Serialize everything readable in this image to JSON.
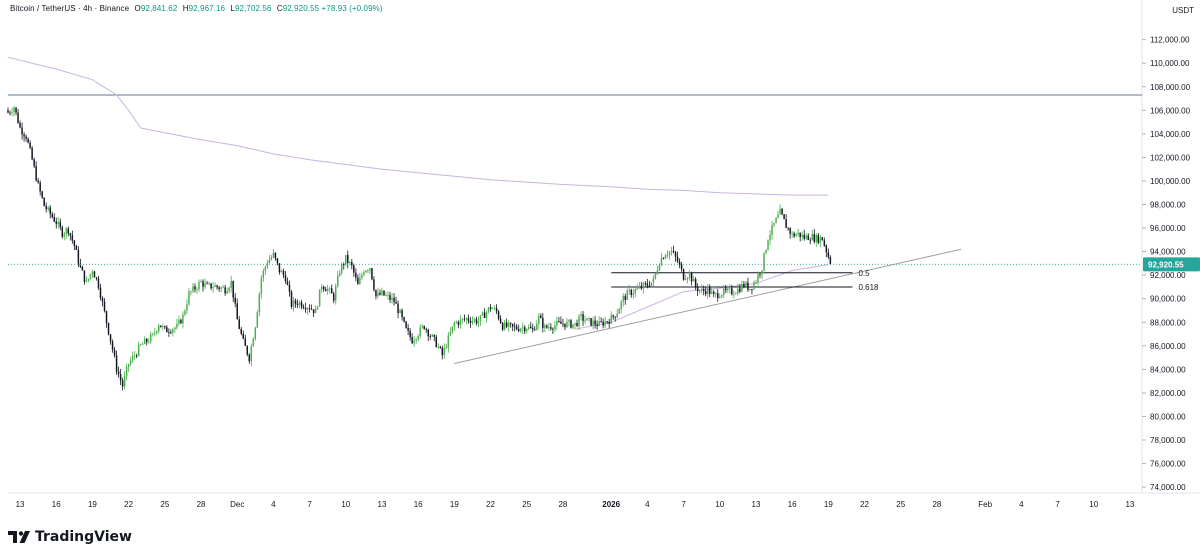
{
  "header": {
    "symbol": "Bitcoin / TetherUS · 4h · Binance",
    "o_label": "O",
    "o": "92,841.62",
    "h_label": "H",
    "h": "92,967.16",
    "l_label": "L",
    "l": "92,702.56",
    "c_label": "C",
    "c": "92,920.55",
    "change": "+78.93 (+0.09%)"
  },
  "currency": "USDT",
  "brand": {
    "name": "TradingView"
  },
  "colors": {
    "up": "#4caf50",
    "down": "#131722",
    "ma": "#c9b3e0",
    "last_price_bg": "#26a69a",
    "resistance": "#5b7a8c",
    "trendline": "#9e9e9e"
  },
  "chart_data": {
    "type": "candlestick",
    "interval": "4h",
    "y_axis": {
      "min": 73500,
      "max": 113500,
      "ticks": [
        74000,
        76000,
        78000,
        80000,
        82000,
        84000,
        86000,
        88000,
        90000,
        92000,
        94000,
        96000,
        98000,
        100000,
        102000,
        104000,
        106000,
        108000,
        110000,
        112000
      ],
      "tick_labels": [
        "74,000.00",
        "76,000.00",
        "78,000.00",
        "80,000.00",
        "82,000.00",
        "84,000.00",
        "86,000.00",
        "88,000.00",
        "90,000.00",
        "92,000.00",
        "94,000.00",
        "96,000.00",
        "98,000.00",
        "100,000.00",
        "102,000.00",
        "104,000.00",
        "106,000.00",
        "108,000.00",
        "110,000.00",
        "112,000.00"
      ],
      "last_price_label": "92,920.55",
      "last_price": 92920.55
    },
    "x_axis": {
      "start": "2025-11-12",
      "end": "2026-02-14",
      "ticks": [
        {
          "date": "2025-11-13",
          "label": "13"
        },
        {
          "date": "2025-11-16",
          "label": "16"
        },
        {
          "date": "2025-11-19",
          "label": "19"
        },
        {
          "date": "2025-11-22",
          "label": "22"
        },
        {
          "date": "2025-11-25",
          "label": "25"
        },
        {
          "date": "2025-11-28",
          "label": "28"
        },
        {
          "date": "2025-12-01",
          "label": "Dec"
        },
        {
          "date": "2025-12-04",
          "label": "4"
        },
        {
          "date": "2025-12-07",
          "label": "7"
        },
        {
          "date": "2025-12-10",
          "label": "10"
        },
        {
          "date": "2025-12-13",
          "label": "13"
        },
        {
          "date": "2025-12-16",
          "label": "16"
        },
        {
          "date": "2025-12-19",
          "label": "19"
        },
        {
          "date": "2025-12-22",
          "label": "22"
        },
        {
          "date": "2025-12-25",
          "label": "25"
        },
        {
          "date": "2025-12-28",
          "label": "28"
        },
        {
          "date": "2026-01-01",
          "label": "2026"
        },
        {
          "date": "2026-01-04",
          "label": "4"
        },
        {
          "date": "2026-01-07",
          "label": "7"
        },
        {
          "date": "2026-01-10",
          "label": "10"
        },
        {
          "date": "2026-01-13",
          "label": "13"
        },
        {
          "date": "2026-01-16",
          "label": "16"
        },
        {
          "date": "2026-01-19",
          "label": "19"
        },
        {
          "date": "2026-01-22",
          "label": "22"
        },
        {
          "date": "2026-01-25",
          "label": "25"
        },
        {
          "date": "2026-01-28",
          "label": "28"
        },
        {
          "date": "2026-02-01",
          "label": "Feb"
        },
        {
          "date": "2026-02-04",
          "label": "4"
        },
        {
          "date": "2026-02-07",
          "label": "7"
        },
        {
          "date": "2026-02-10",
          "label": "10"
        },
        {
          "date": "2026-02-13",
          "label": "13"
        }
      ]
    },
    "price_path": [
      [
        "2025-11-12",
        105800
      ],
      [
        "2025-11-12T12",
        106300
      ],
      [
        "2025-11-13",
        104500
      ],
      [
        "2025-11-13T12",
        103800
      ],
      [
        "2025-11-14",
        101800
      ],
      [
        "2025-11-14T12",
        99600
      ],
      [
        "2025-11-15",
        97900
      ],
      [
        "2025-11-16",
        96500
      ],
      [
        "2025-11-16T12",
        95600
      ],
      [
        "2025-11-17",
        95900
      ],
      [
        "2025-11-17T12",
        94500
      ],
      [
        "2025-11-18",
        92600
      ],
      [
        "2025-11-18T12",
        91300
      ],
      [
        "2025-11-19",
        92500
      ],
      [
        "2025-11-19T12",
        91200
      ],
      [
        "2025-11-20",
        88800
      ],
      [
        "2025-11-20T12",
        86500
      ],
      [
        "2025-11-21",
        84100
      ],
      [
        "2025-11-21T12",
        82600
      ],
      [
        "2025-11-22",
        84500
      ],
      [
        "2025-11-22T12",
        85200
      ],
      [
        "2025-11-23",
        86000
      ],
      [
        "2025-11-24",
        86800
      ],
      [
        "2025-11-24T12",
        87900
      ],
      [
        "2025-11-25",
        87300
      ],
      [
        "2025-11-26",
        87600
      ],
      [
        "2025-11-26T12",
        88500
      ],
      [
        "2025-11-27",
        90400
      ],
      [
        "2025-11-28",
        91400
      ],
      [
        "2025-11-28T12",
        91000
      ],
      [
        "2025-11-29",
        91100
      ],
      [
        "2025-11-30",
        90800
      ],
      [
        "2025-11-30T12",
        91400
      ],
      [
        "2025-12-01",
        88200
      ],
      [
        "2025-12-01T12",
        86300
      ],
      [
        "2025-12-02",
        85000
      ],
      [
        "2025-12-02T12",
        87800
      ],
      [
        "2025-12-03",
        91800
      ],
      [
        "2025-12-03T12",
        93200
      ],
      [
        "2025-12-04",
        93700
      ],
      [
        "2025-12-04T12",
        92400
      ],
      [
        "2025-12-05",
        91800
      ],
      [
        "2025-12-05T12",
        89500
      ],
      [
        "2025-12-06",
        89700
      ],
      [
        "2025-12-07",
        89300
      ],
      [
        "2025-12-07T12",
        88900
      ],
      [
        "2025-12-08",
        91200
      ],
      [
        "2025-12-08T12",
        90800
      ],
      [
        "2025-12-09",
        90100
      ],
      [
        "2025-12-09T12",
        92400
      ],
      [
        "2025-12-10",
        93400
      ],
      [
        "2025-12-10T12",
        92700
      ],
      [
        "2025-12-11",
        91100
      ],
      [
        "2025-12-11T12",
        92500
      ],
      [
        "2025-12-12",
        92700
      ],
      [
        "2025-12-12T12",
        90200
      ],
      [
        "2025-12-13",
        90400
      ],
      [
        "2025-12-14",
        89800
      ],
      [
        "2025-12-14T12",
        88700
      ],
      [
        "2025-12-15",
        87300
      ],
      [
        "2025-12-15T12",
        86500
      ],
      [
        "2025-12-16",
        87100
      ],
      [
        "2025-12-16T12",
        87700
      ],
      [
        "2025-12-17",
        86900
      ],
      [
        "2025-12-17T12",
        86200
      ],
      [
        "2025-12-18",
        85200
      ],
      [
        "2025-12-18T12",
        86600
      ],
      [
        "2025-12-19",
        87900
      ],
      [
        "2025-12-20",
        88300
      ],
      [
        "2025-12-21",
        88100
      ],
      [
        "2025-12-21T12",
        88700
      ],
      [
        "2025-12-22",
        89300
      ],
      [
        "2025-12-22T12",
        88900
      ],
      [
        "2025-12-23",
        87700
      ],
      [
        "2025-12-24",
        87500
      ],
      [
        "2025-12-25",
        87600
      ],
      [
        "2025-12-25T12",
        87300
      ],
      [
        "2025-12-26",
        88400
      ],
      [
        "2025-12-26T12",
        87500
      ],
      [
        "2025-12-27",
        87700
      ],
      [
        "2025-12-28",
        87900
      ],
      [
        "2025-12-29",
        87800
      ],
      [
        "2025-12-29T12",
        88400
      ],
      [
        "2025-12-30",
        88100
      ],
      [
        "2025-12-31",
        87800
      ],
      [
        "2026-01-01",
        88300
      ],
      [
        "2026-01-01T12",
        88900
      ],
      [
        "2026-01-02",
        90000
      ],
      [
        "2026-01-02T12",
        90500
      ],
      [
        "2026-01-03",
        90700
      ],
      [
        "2026-01-04",
        91200
      ],
      [
        "2026-01-04T12",
        91500
      ],
      [
        "2026-01-05",
        93200
      ],
      [
        "2026-01-05T12",
        93900
      ],
      [
        "2026-01-06",
        94000
      ],
      [
        "2026-01-06T12",
        93200
      ],
      [
        "2026-01-07",
        91900
      ],
      [
        "2026-01-07T12",
        92100
      ],
      [
        "2026-01-08",
        91000
      ],
      [
        "2026-01-08T12",
        90600
      ],
      [
        "2026-01-09",
        90800
      ],
      [
        "2026-01-09T12",
        90200
      ],
      [
        "2026-01-10",
        90500
      ],
      [
        "2026-01-11",
        90600
      ],
      [
        "2026-01-11T12",
        90800
      ],
      [
        "2026-01-12",
        91200
      ],
      [
        "2026-01-12T12",
        90900
      ],
      [
        "2026-01-13",
        91600
      ],
      [
        "2026-01-13T12",
        92700
      ],
      [
        "2026-01-14",
        95200
      ],
      [
        "2026-01-14T12",
        96300
      ],
      [
        "2026-01-15",
        97300
      ],
      [
        "2026-01-15T12",
        96200
      ],
      [
        "2026-01-16",
        95400
      ],
      [
        "2026-01-16T12",
        95500
      ],
      [
        "2026-01-17",
        95200
      ],
      [
        "2026-01-17T12",
        95300
      ],
      [
        "2026-01-18",
        95100
      ],
      [
        "2026-01-18T12",
        95100
      ],
      [
        "2026-01-19",
        93600
      ],
      [
        "2026-01-19T06",
        92920
      ]
    ],
    "moving_average": [
      [
        "2025-11-12",
        110500
      ],
      [
        "2025-11-16",
        109500
      ],
      [
        "2025-11-19",
        108600
      ],
      [
        "2025-11-21",
        107300
      ],
      [
        "2025-11-22",
        106000
      ],
      [
        "2025-11-23",
        104500
      ],
      [
        "2025-11-25",
        104100
      ],
      [
        "2025-11-28",
        103500
      ],
      [
        "2025-12-01",
        103000
      ],
      [
        "2025-12-04",
        102300
      ],
      [
        "2025-12-07",
        101800
      ],
      [
        "2025-12-10",
        101400
      ],
      [
        "2025-12-13",
        101000
      ],
      [
        "2025-12-16",
        100700
      ],
      [
        "2025-12-19",
        100400
      ],
      [
        "2025-12-22",
        100100
      ],
      [
        "2025-12-25",
        99900
      ],
      [
        "2025-12-28",
        99700
      ],
      [
        "2026-01-01",
        99500
      ],
      [
        "2026-01-04",
        99300
      ],
      [
        "2026-01-07",
        99200
      ],
      [
        "2026-01-10",
        99000
      ],
      [
        "2026-01-13",
        98900
      ],
      [
        "2026-01-16",
        98800
      ],
      [
        "2026-01-19",
        98800
      ]
    ],
    "short_moving_average": [
      [
        "2025-12-29",
        87400
      ],
      [
        "2026-01-01",
        88000
      ],
      [
        "2026-01-04",
        89300
      ],
      [
        "2026-01-07",
        90600
      ],
      [
        "2026-01-10",
        90900
      ],
      [
        "2026-01-13",
        91300
      ],
      [
        "2026-01-16",
        92400
      ],
      [
        "2026-01-19",
        92900
      ]
    ],
    "resistance_level": 107300,
    "trendline": {
      "from": [
        "2025-12-19",
        84500
      ],
      "to": [
        "2026-01-30",
        94200
      ]
    },
    "fib_levels": [
      {
        "label": "0.5",
        "value": 92200,
        "from": "2026-01-01",
        "to": "2026-01-21"
      },
      {
        "label": "0.618",
        "value": 91000,
        "from": "2026-01-01",
        "to": "2026-01-21"
      }
    ]
  }
}
